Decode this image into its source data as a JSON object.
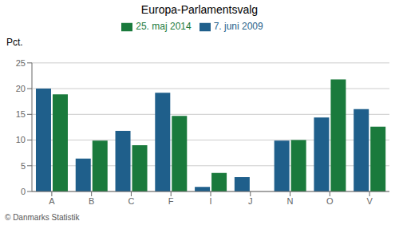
{
  "chart_data": {
    "type": "bar",
    "title": "Europa-Parlamentsvalg",
    "ylabel": "Pct.",
    "footer": "© Danmarks Statistik",
    "categories": [
      "A",
      "B",
      "C",
      "F",
      "I",
      "J",
      "N",
      "O",
      "V"
    ],
    "series": [
      {
        "name": "7. juni 2009",
        "color": "#1f5f8b",
        "values": [
          20.0,
          6.4,
          11.8,
          19.2,
          0.9,
          2.8,
          9.9,
          14.4,
          16.0
        ]
      },
      {
        "name": "25. maj 2014",
        "color": "#1a7a3c",
        "values": [
          18.9,
          9.9,
          9.0,
          14.7,
          3.6,
          0.0,
          10.0,
          21.8,
          12.6
        ]
      }
    ],
    "ylim": [
      0,
      25
    ],
    "yticks": [
      0,
      5,
      10,
      15,
      20,
      25
    ],
    "grid": true,
    "legend": "top"
  }
}
